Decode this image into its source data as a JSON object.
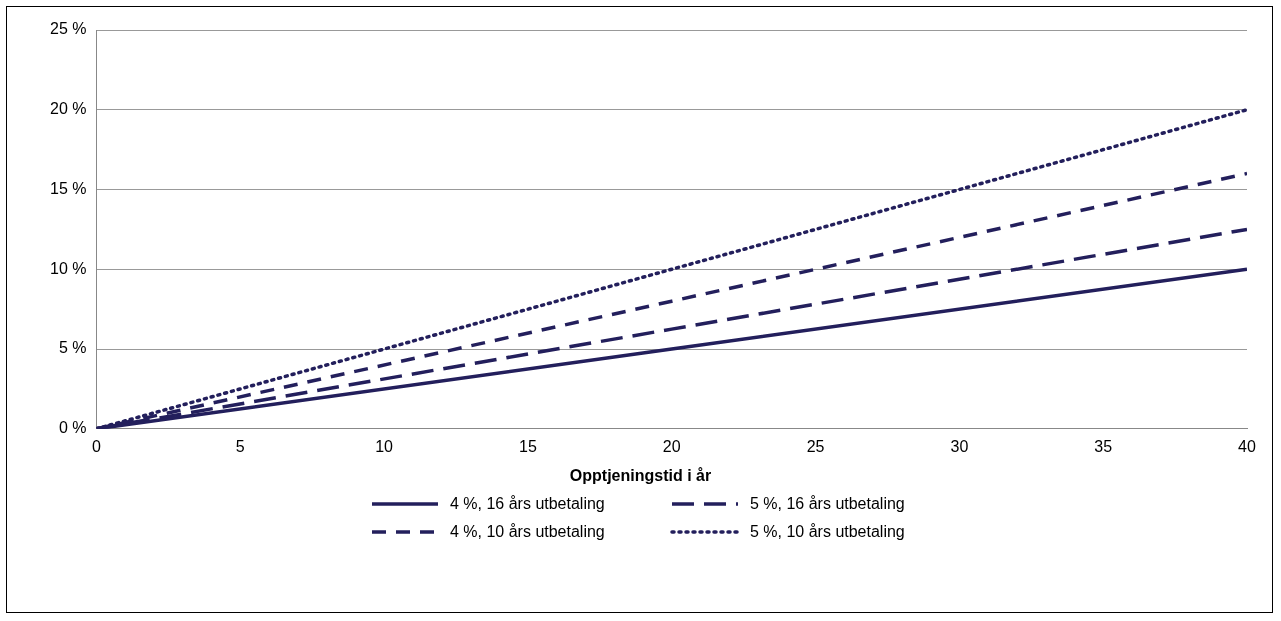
{
  "chart_data": {
    "type": "line",
    "xlabel": "Opptjeningstid i år",
    "x": [
      0,
      20,
      40
    ],
    "series": [
      {
        "name": "4 %, 16 års utbetaling",
        "color": "#231f5c",
        "line_style": "solid",
        "values": [
          0,
          5,
          10
        ]
      },
      {
        "name": "5 %, 16 års utbetaling",
        "color": "#231f5c",
        "line_style": "longdash",
        "values": [
          0,
          6.25,
          12.5
        ]
      },
      {
        "name": "4 %, 10 års utbetaling",
        "color": "#231f5c",
        "line_style": "dashed",
        "values": [
          0,
          8,
          16
        ]
      },
      {
        "name": "5 %, 10 års utbetaling",
        "color": "#231f5c",
        "line_style": "dotted",
        "values": [
          0,
          10,
          20
        ]
      }
    ],
    "xlim": [
      0,
      40
    ],
    "xticks": [
      0,
      5,
      10,
      15,
      20,
      25,
      30,
      35,
      40
    ],
    "ylim": [
      0,
      25
    ],
    "yticks": [
      {
        "value": 0,
        "label": "0 %"
      },
      {
        "value": 5,
        "label": "5 %"
      },
      {
        "value": 10,
        "label": "10 %"
      },
      {
        "value": 15,
        "label": "15 %"
      },
      {
        "value": 20,
        "label": "20 %"
      },
      {
        "value": 25,
        "label": "25 %"
      }
    ],
    "grid": "y",
    "legend": "bottom",
    "marker": "none"
  }
}
